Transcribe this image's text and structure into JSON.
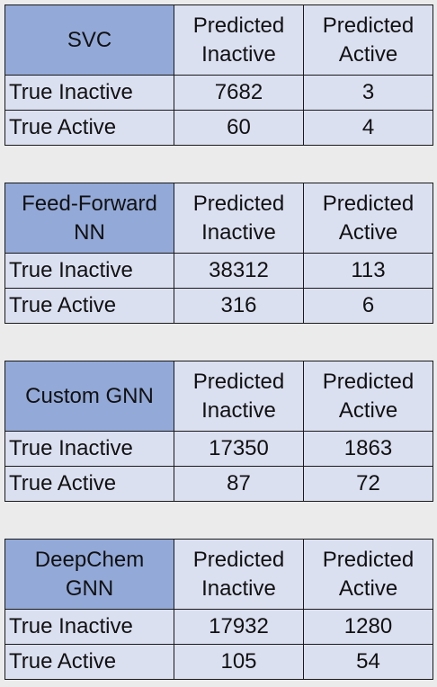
{
  "labels": {
    "pred_inactive_1": "Predicted",
    "pred_inactive_2": "Inactive",
    "pred_active_1": "Predicted",
    "pred_active_2": "Active",
    "true_inactive": "True Inactive",
    "true_active": "True Active"
  },
  "tables": [
    {
      "model_line1": "SVC",
      "model_line2": "",
      "true_inactive_pred_inactive": "7682",
      "true_inactive_pred_active": "3",
      "true_active_pred_inactive": "60",
      "true_active_pred_active": "4"
    },
    {
      "model_line1": "Feed-Forward",
      "model_line2": "NN",
      "true_inactive_pred_inactive": "38312",
      "true_inactive_pred_active": "113",
      "true_active_pred_inactive": "316",
      "true_active_pred_active": "6"
    },
    {
      "model_line1": "Custom GNN",
      "model_line2": "",
      "true_inactive_pred_inactive": "17350",
      "true_inactive_pred_active": "1863",
      "true_active_pred_inactive": "87",
      "true_active_pred_active": "72"
    },
    {
      "model_line1": "DeepChem",
      "model_line2": "GNN",
      "true_inactive_pred_inactive": "17932",
      "true_inactive_pred_active": "1280",
      "true_active_pred_inactive": "105",
      "true_active_pred_active": "54"
    }
  ]
}
